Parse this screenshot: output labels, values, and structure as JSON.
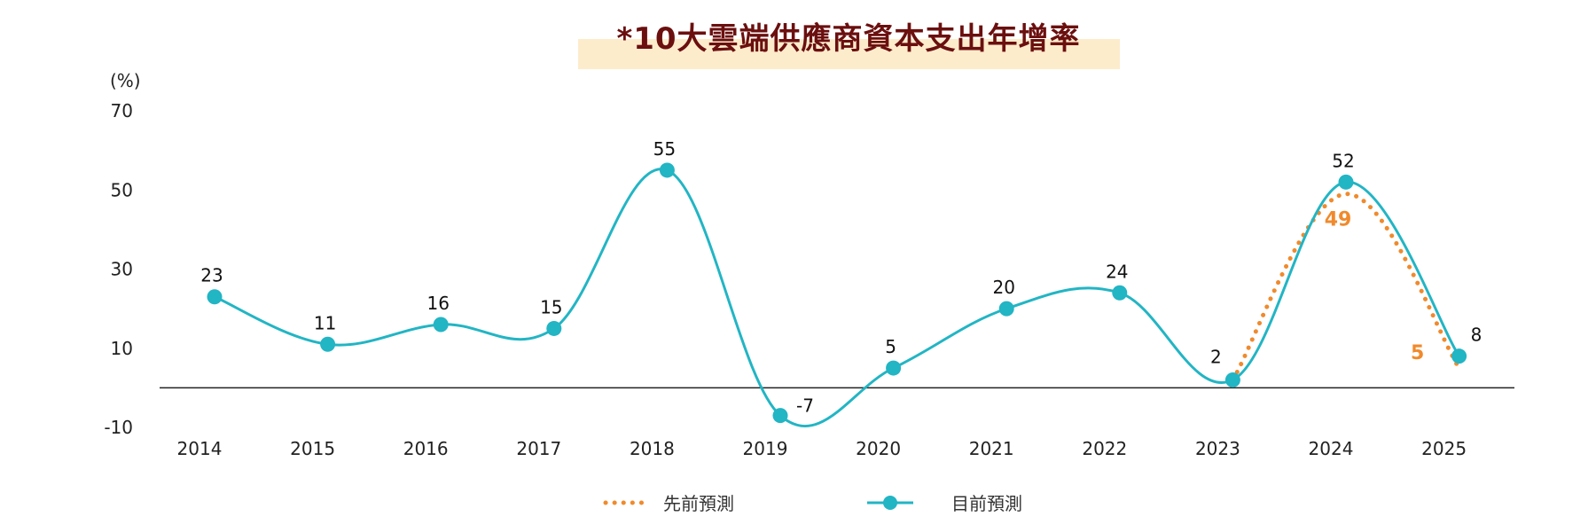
{
  "chart_data": {
    "type": "line",
    "title": "*10大雲端供應商資本支出年增率",
    "yunit": "(%)",
    "ylim": [
      -10,
      70
    ],
    "yticks": [
      70,
      50,
      30,
      10,
      -10
    ],
    "categories": [
      "2014",
      "2015",
      "2016",
      "2017",
      "2018",
      "2019",
      "2020",
      "2021",
      "2022",
      "2023",
      "2024",
      "2025"
    ],
    "series": [
      {
        "name": "先前預測",
        "style": "dotted",
        "x": [
          "2023",
          "2024",
          "2025"
        ],
        "values": [
          2,
          49,
          5
        ]
      },
      {
        "name": "目前預測",
        "style": "solid-smooth-markers",
        "x": [
          "2014",
          "2015",
          "2016",
          "2017",
          "2018",
          "2019",
          "2020",
          "2021",
          "2022",
          "2023",
          "2024",
          "2025"
        ],
        "values": [
          23,
          11,
          16,
          15,
          55,
          -7,
          5,
          20,
          24,
          2,
          52,
          8
        ]
      }
    ],
    "prev_labels": [
      {
        "x": "2024",
        "text": "49"
      },
      {
        "x": "2025",
        "text": "5"
      }
    ],
    "legend_position": "bottom-center",
    "grid": false,
    "zero_line": true,
    "colors": {
      "current": "#22b5c4",
      "previous": "#f08a2c",
      "title_text": "#6b0f0f",
      "title_bg": "#fdeccc",
      "axis_line": "#222222"
    }
  }
}
